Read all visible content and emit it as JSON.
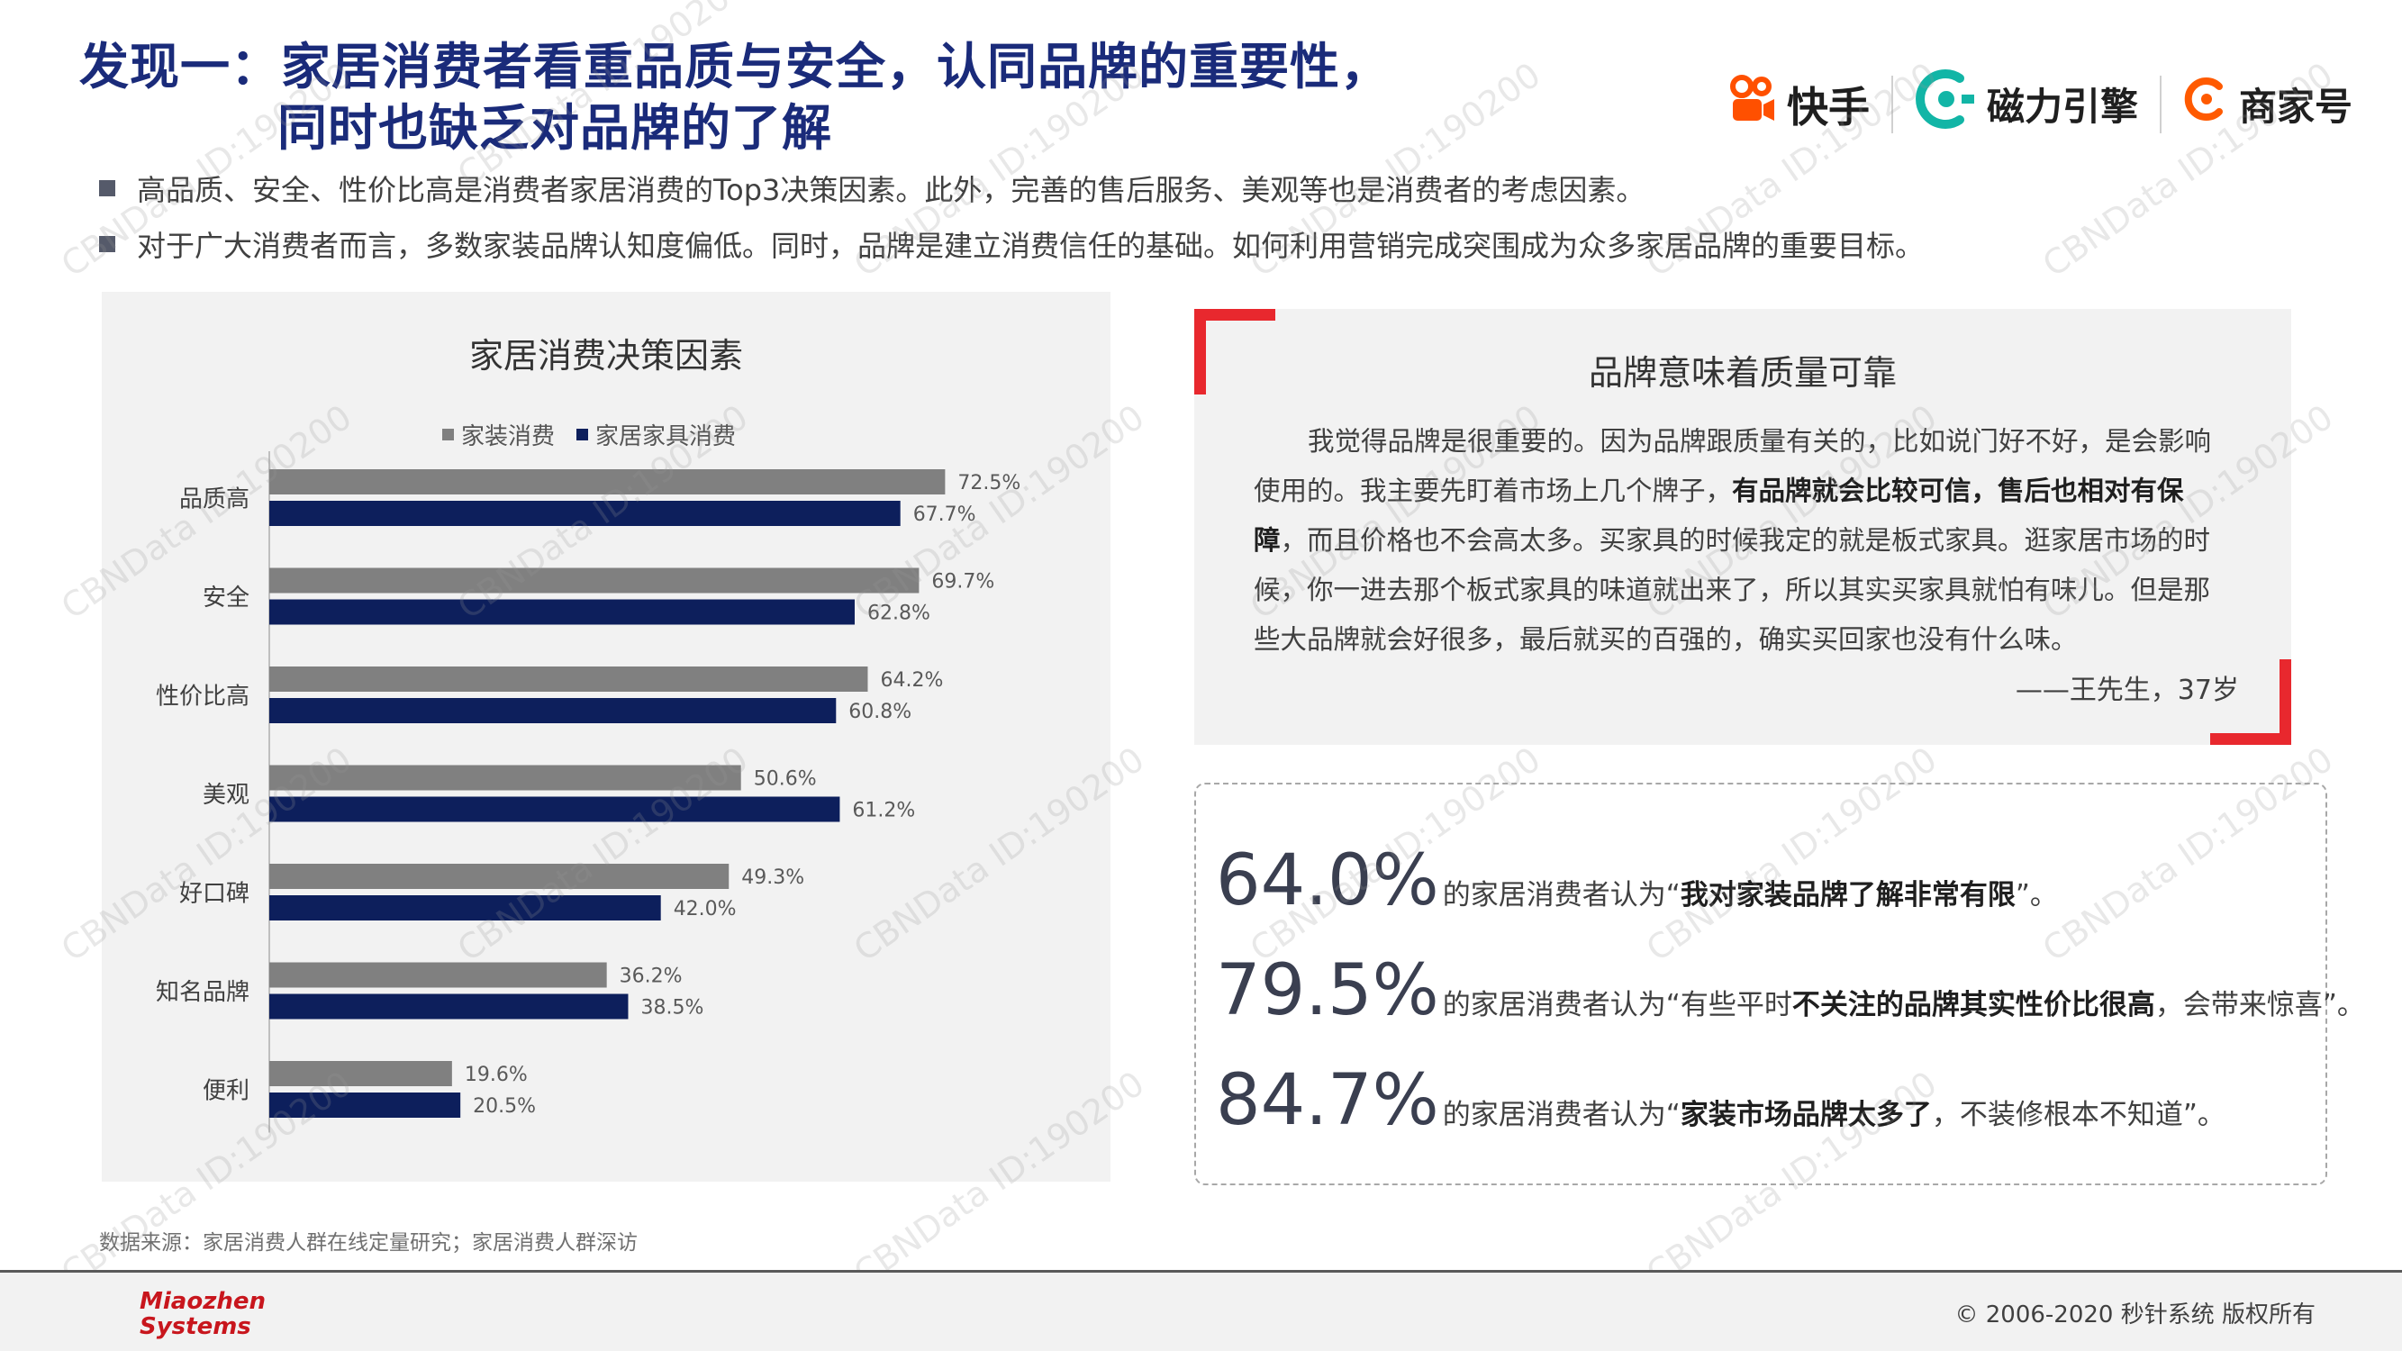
{
  "header": {
    "title_line1": "发现一：家居消费者看重品质与安全，认同品牌的重要性，",
    "title_line2": "同时也缺乏对品牌的了解"
  },
  "logos": {
    "kuaishou": "快手",
    "cili": "磁力引擎",
    "shangjia": "商家号"
  },
  "bullets": [
    "高品质、安全、性价比高是消费者家居消费的Top3决策因素。此外，完善的售后服务、美观等也是消费者的考虑因素。",
    "对于广大消费者而言，多数家装品牌认知度偏低。同时，品牌是建立消费信任的基础。如何利用营销完成突围成为众多家居品牌的重要目标。"
  ],
  "chart_data": {
    "type": "bar",
    "orientation": "horizontal",
    "title": "家居消费决策因素",
    "categories": [
      "品质高",
      "安全",
      "性价比高",
      "美观",
      "好口碑",
      "知名品牌",
      "便利"
    ],
    "series": [
      {
        "name": "家装消费",
        "color": "#808080",
        "values": [
          72.5,
          69.7,
          64.2,
          50.6,
          49.3,
          36.2,
          19.6
        ],
        "labels": [
          "72.5%",
          "69.7%",
          "64.2%",
          "50.6%",
          "49.3%",
          "36.2%",
          "19.6%"
        ]
      },
      {
        "name": "家居家具消费",
        "color": "#0d1f5c",
        "values": [
          67.7,
          62.8,
          60.8,
          61.2,
          42.0,
          38.5,
          20.5
        ],
        "labels": [
          "67.7%",
          "62.8%",
          "60.8%",
          "61.2%",
          "42.0%",
          "38.5%",
          "20.5%"
        ]
      }
    ],
    "legend_position": "top"
  },
  "quote": {
    "title": "品牌意味着质量可靠",
    "p1": "我觉得品牌是很重要的。因为品牌跟质量有关的，比如说门好不好，是会影响使用的。我主要先盯着市场上几个牌子，",
    "p1_bold": "有品牌就会比较可信，售后也相对有保障",
    "p2": "，而且价格也不会高太多。买家具的时候我定的就是板式家具。逛家居市场的时候，你一进去那个板式家具的味道就出来了，所以其实买家具就怕有味儿。但是那些大品牌就会好很多，最后就买的百强的，确实买回家也没有什么味。",
    "author": "——王先生，37岁"
  },
  "stats": [
    {
      "value": "64.0%",
      "prefix": "的家居消费者认为“",
      "bold": "我对家装品牌了解非常有限",
      "suffix": "”。"
    },
    {
      "value": "79.5%",
      "prefix": "的家居消费者认为“有些平时",
      "bold": "不关注的品牌其实性价比很高",
      "suffix": "，会带来惊喜”。"
    },
    {
      "value": "84.7%",
      "prefix": "的家居消费者认为“",
      "bold": "家装市场品牌太多了",
      "suffix": "，不装修根本不知道”。"
    }
  ],
  "source": "数据来源：家居消费人群在线定量研究；家居消费人群深访",
  "footer": {
    "brand_line1": "Miaozhen",
    "brand_line2": "Systems",
    "copyright": "© 2006-2020 秒针系统 版权所有"
  },
  "watermark": "CBNData ID:190200"
}
